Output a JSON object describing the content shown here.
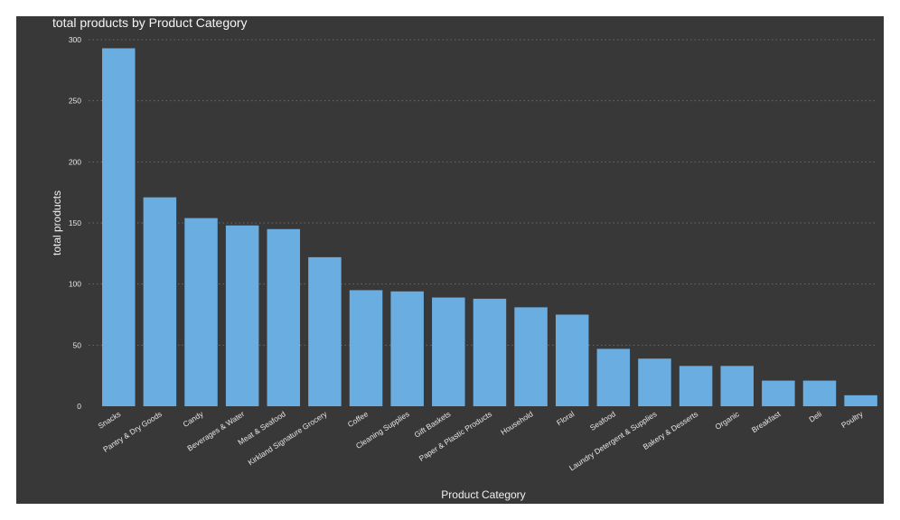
{
  "chart_data": {
    "type": "bar",
    "title": "total products by Product Category",
    "xlabel": "Product Category",
    "ylabel": "total products",
    "ylim": [
      0,
      300
    ],
    "yticks": [
      0,
      50,
      100,
      150,
      200,
      250,
      300
    ],
    "grid": true,
    "bar_color": "#6aade0",
    "background_color": "#383838",
    "categories": [
      "Snacks",
      "Pantry & Dry Goods",
      "Candy",
      "Beverages & Water",
      "Meat & Seafood",
      "Kirkland Signature Grocery",
      "Coffee",
      "Cleaning Supplies",
      "Gift Baskets",
      "Paper & Plastic Products",
      "Household",
      "Floral",
      "Seafood",
      "Laundry Detergent & Supplies",
      "Bakery & Desserts",
      "Organic",
      "Breakfast",
      "Deli",
      "Poultry"
    ],
    "values": [
      293,
      171,
      154,
      148,
      145,
      122,
      95,
      94,
      89,
      88,
      81,
      75,
      47,
      39,
      33,
      33,
      21,
      21,
      9
    ]
  }
}
